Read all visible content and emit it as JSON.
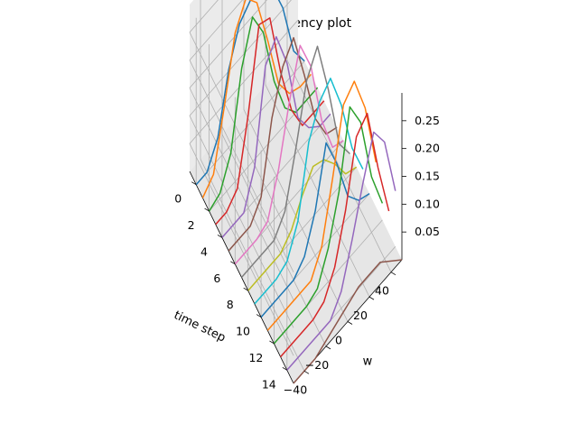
{
  "chart_data": {
    "type": "line",
    "projection": "3d",
    "title": "time-frequency plot",
    "xlabel": "time step",
    "ylabel": "w",
    "zlabel": "",
    "xlim": [
      -1,
      15
    ],
    "ylim": [
      -50,
      50
    ],
    "zlim": [
      0,
      0.3
    ],
    "x_ticks": [
      "0",
      "2",
      "4",
      "6",
      "8",
      "10",
      "12",
      "14"
    ],
    "y_ticks": [
      "−40",
      "−20",
      "0",
      "20",
      "40"
    ],
    "z_ticks": [
      "0.05",
      "0.10",
      "0.15",
      "0.20",
      "0.25"
    ],
    "grid": true,
    "w": [
      -50,
      -40,
      -30,
      -20,
      -10,
      0,
      10,
      20,
      30,
      40,
      50
    ],
    "series": [
      {
        "x": 0,
        "color": "#1f77b4",
        "values": [
          0.0,
          0.0,
          0.04,
          0.14,
          0.2,
          0.22,
          0.22,
          0.2,
          0.14,
          0.04,
          0.0
        ]
      },
      {
        "x": 1,
        "color": "#ff7f0e",
        "values": [
          0.0,
          0.02,
          0.12,
          0.23,
          0.27,
          0.24,
          0.15,
          0.05,
          0.01,
          0.0,
          0.0
        ]
      },
      {
        "x": 2,
        "color": "#2ca02c",
        "values": [
          0.0,
          0.01,
          0.06,
          0.19,
          0.26,
          0.21,
          0.1,
          0.03,
          0.0,
          0.0,
          0.0
        ]
      },
      {
        "x": 3,
        "color": "#d62728",
        "values": [
          0.0,
          0.0,
          0.02,
          0.13,
          0.27,
          0.26,
          0.14,
          0.05,
          0.0,
          0.0,
          0.0
        ]
      },
      {
        "x": 4,
        "color": "#9467bd",
        "values": [
          0.0,
          0.0,
          0.0,
          0.06,
          0.22,
          0.25,
          0.18,
          0.06,
          0.02,
          0.0,
          0.0
        ]
      },
      {
        "x": 5,
        "color": "#8c564b",
        "values": [
          0.0,
          0.0,
          0.0,
          0.03,
          0.15,
          0.22,
          0.25,
          0.16,
          0.06,
          0.01,
          0.0
        ]
      },
      {
        "x": 6,
        "color": "#e377c2",
        "values": [
          0.0,
          0.0,
          0.0,
          0.01,
          0.08,
          0.18,
          0.26,
          0.2,
          0.08,
          0.01,
          0.0
        ]
      },
      {
        "x": 7,
        "color": "#7f7f7f",
        "values": [
          0.0,
          0.0,
          0.0,
          0.0,
          0.03,
          0.12,
          0.22,
          0.26,
          0.16,
          0.04,
          0.0
        ]
      },
      {
        "x": 8,
        "color": "#bcbd22",
        "values": [
          0.0,
          0.0,
          0.0,
          0.0,
          0.02,
          0.06,
          0.09,
          0.08,
          0.05,
          0.01,
          0.0
        ]
      },
      {
        "x": 9,
        "color": "#17becf",
        "values": [
          0.0,
          0.0,
          0.0,
          0.01,
          0.06,
          0.18,
          0.23,
          0.25,
          0.18,
          0.08,
          0.02
        ]
      },
      {
        "x": 10,
        "color": "#1f77b4",
        "values": [
          0.0,
          0.0,
          0.0,
          0.0,
          0.02,
          0.08,
          0.18,
          0.12,
          0.04,
          0.01,
          0.0
        ]
      },
      {
        "x": 11,
        "color": "#ff7f0e",
        "values": [
          0.0,
          0.0,
          0.0,
          0.0,
          0.0,
          0.04,
          0.14,
          0.25,
          0.27,
          0.2,
          0.08
        ]
      },
      {
        "x": 12,
        "color": "#2ca02c",
        "values": [
          0.0,
          0.0,
          0.0,
          0.0,
          0.01,
          0.06,
          0.14,
          0.27,
          0.22,
          0.1,
          0.03
        ]
      },
      {
        "x": 13,
        "color": "#d62728",
        "values": [
          0.0,
          0.0,
          0.0,
          0.0,
          0.01,
          0.05,
          0.13,
          0.24,
          0.26,
          0.14,
          0.04
        ]
      },
      {
        "x": 14,
        "color": "#9467bd",
        "values": [
          0.0,
          0.0,
          0.0,
          0.0,
          0.0,
          0.03,
          0.1,
          0.18,
          0.25,
          0.21,
          0.1
        ]
      },
      {
        "x": 15,
        "color": "#8c564b",
        "values": [
          0.0,
          0.0,
          0.0,
          0.01,
          0.02,
          0.03,
          0.04,
          0.04,
          0.04,
          0.02,
          0.0
        ]
      }
    ]
  }
}
